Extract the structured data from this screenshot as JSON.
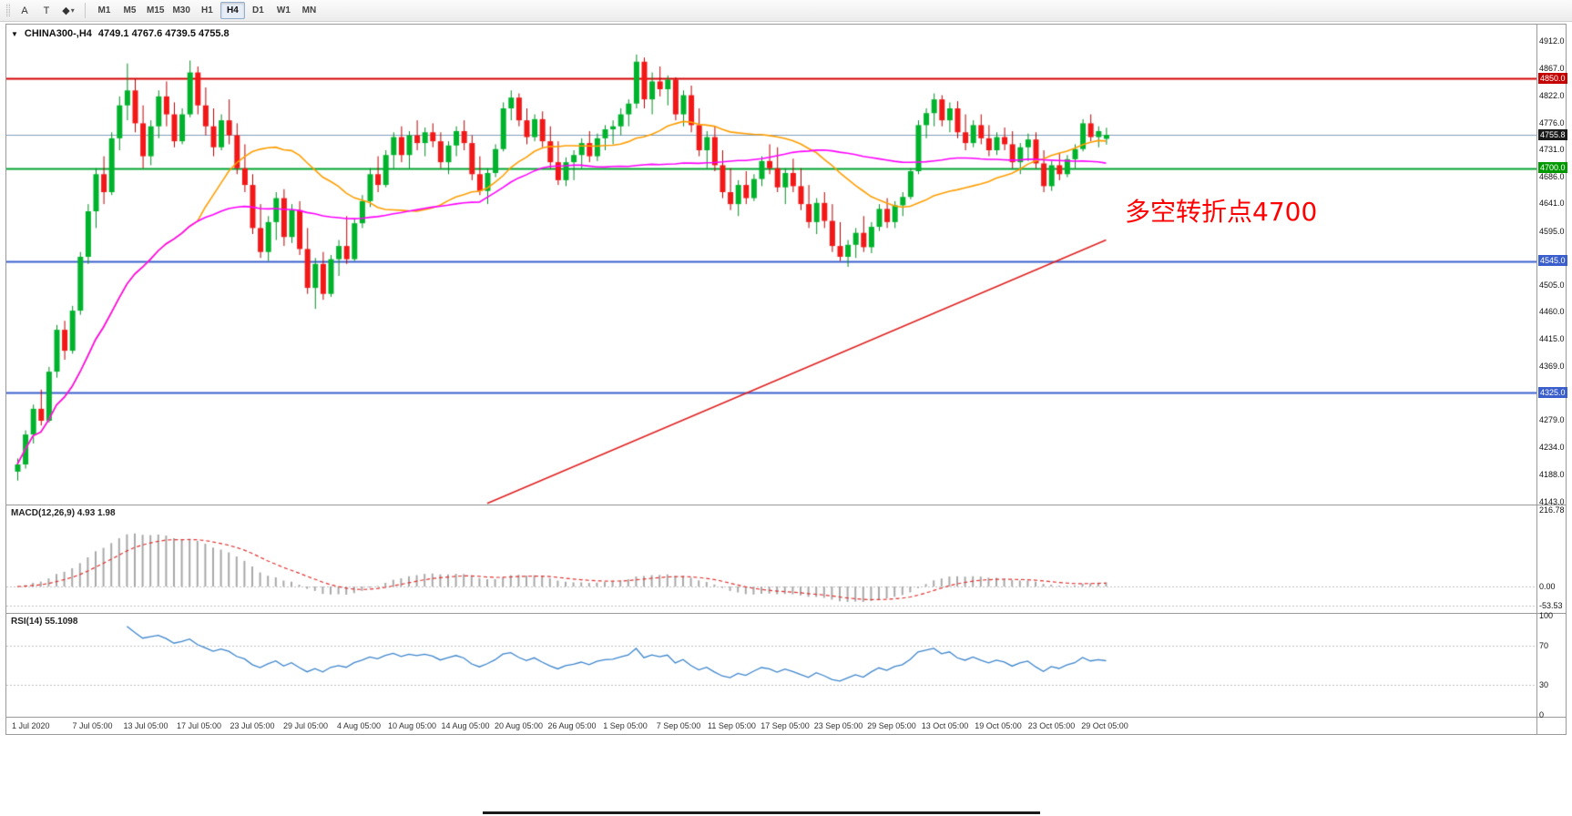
{
  "toolbar": {
    "tools": [
      {
        "id": "annotation-a",
        "glyph": "A"
      },
      {
        "id": "text",
        "glyph": "T"
      },
      {
        "id": "shapes",
        "glyph": "◆",
        "arrow": "▾"
      }
    ],
    "timeframes": [
      {
        "label": "M1",
        "active": false
      },
      {
        "label": "M5",
        "active": false
      },
      {
        "label": "M15",
        "active": false
      },
      {
        "label": "M30",
        "active": false
      },
      {
        "label": "H1",
        "active": false
      },
      {
        "label": "H4",
        "active": true
      },
      {
        "label": "D1",
        "active": false
      },
      {
        "label": "W1",
        "active": false
      },
      {
        "label": "MN",
        "active": false
      }
    ]
  },
  "header": {
    "marker": "▼",
    "title": "CHINA300-,H4",
    "ohlc": "4749.1 4767.6 4739.5 4755.8"
  },
  "annotation": {
    "text": "多空转折点4700",
    "color": "#ff0000"
  },
  "macd": {
    "label": "MACD(12,26,9) 4.93 1.98",
    "fast": 12,
    "slow": 26,
    "signal": 9,
    "main_value": 4.93,
    "signal_value": 1.98,
    "range": [
      -75,
      230
    ],
    "axis_labels": [
      {
        "text": "216.78",
        "value": 216.78
      },
      {
        "text": "0.00",
        "value": 0
      },
      {
        "text": "-53.53",
        "value": -53.53
      }
    ],
    "level_lines": [
      0,
      -53.53
    ],
    "histogram_color": "#a8a8a8",
    "signal_color": "#e03030"
  },
  "rsi": {
    "label": "RSI(14) 55.1098",
    "period": 14,
    "value": 55.1098,
    "range": [
      0,
      100
    ],
    "axis_labels": [
      {
        "text": "100",
        "value": 100
      },
      {
        "text": "70",
        "value": 70
      },
      {
        "text": "30",
        "value": 30
      },
      {
        "text": "0",
        "value": 0
      }
    ],
    "level_lines": [
      70,
      30
    ],
    "line_color": "#3d85cc"
  },
  "chart_data": {
    "type": "candlestick",
    "title": "CHINA300-,H4",
    "symbol": "CHINA300-",
    "timeframe": "H4",
    "current_ohlc": {
      "open": 4749.1,
      "high": 4767.6,
      "low": 4739.5,
      "close": 4755.8
    },
    "up_color": "#00b32c",
    "down_color": "#f21818",
    "y_axis": {
      "range": [
        4138,
        4940
      ],
      "ticks": [
        {
          "text": "4912.0",
          "value": 4912
        },
        {
          "text": "4867.0",
          "value": 4867
        },
        {
          "text": "4822.0",
          "value": 4822
        },
        {
          "text": "4776.0",
          "value": 4776
        },
        {
          "text": "4731.0",
          "value": 4731
        },
        {
          "text": "4686.0",
          "value": 4686
        },
        {
          "text": "4641.0",
          "value": 4641
        },
        {
          "text": "4595.0",
          "value": 4595
        },
        {
          "text": "4505.0",
          "value": 4505
        },
        {
          "text": "4460.0",
          "value": 4460
        },
        {
          "text": "4415.0",
          "value": 4415
        },
        {
          "text": "4369.0",
          "value": 4369
        },
        {
          "text": "4279.0",
          "value": 4279
        },
        {
          "text": "4234.0",
          "value": 4234
        },
        {
          "text": "4188.0",
          "value": 4188
        },
        {
          "text": "4143.0",
          "value": 4143
        }
      ]
    },
    "badges": [
      {
        "text": "4850.0",
        "price": 4850,
        "bg": "#c40000"
      },
      {
        "text": "4755.8",
        "price": 4755.8,
        "bg": "#1a1a1a"
      },
      {
        "text": "4700.0",
        "price": 4700,
        "bg": "#009a00"
      },
      {
        "text": "4545.0",
        "price": 4545,
        "bg": "#3a5fcd"
      },
      {
        "text": "4325.0",
        "price": 4325,
        "bg": "#3a5fcd"
      }
    ],
    "hlines": [
      {
        "price": 4850,
        "color": "#d40000",
        "width": 2
      },
      {
        "price": 4755.8,
        "color": "#7f9db9",
        "width": 1
      },
      {
        "price": 4700,
        "color": "#00a32f",
        "width": 2
      },
      {
        "price": 4545,
        "color": "#3a5fcd",
        "width": 2
      },
      {
        "price": 4325,
        "color": "#3a5fcd",
        "width": 2
      }
    ],
    "trendline": {
      "from_index": 60,
      "from_price": 4140,
      "to_index": 139,
      "to_price": 4580,
      "color": "#e02020"
    },
    "moving_averages": [
      {
        "period": 24,
        "color": "#ff9d00"
      },
      {
        "period": 60,
        "color": "#ff00ff"
      }
    ],
    "x_labels": [
      "1 Jul 2020",
      "7 Jul 05:00",
      "13 Jul 05:00",
      "17 Jul 05:00",
      "23 Jul 05:00",
      "29 Jul 05:00",
      "4 Aug 05:00",
      "10 Aug 05:00",
      "14 Aug 05:00",
      "20 Aug 05:00",
      "26 Aug 05:00",
      "1 Sep 05:00",
      "7 Sep 05:00",
      "11 Sep 05:00",
      "17 Sep 05:00",
      "23 Sep 05:00",
      "29 Sep 05:00",
      "13 Oct 05:00",
      "19 Oct 05:00",
      "23 Oct 05:00",
      "29 Oct 05:00"
    ],
    "candles": [
      [
        4193,
        4215,
        4178,
        4205
      ],
      [
        4205,
        4262,
        4198,
        4255
      ],
      [
        4255,
        4305,
        4240,
        4298
      ],
      [
        4298,
        4330,
        4270,
        4278
      ],
      [
        4278,
        4368,
        4275,
        4360
      ],
      [
        4360,
        4438,
        4350,
        4430
      ],
      [
        4430,
        4445,
        4380,
        4395
      ],
      [
        4395,
        4470,
        4390,
        4462
      ],
      [
        4462,
        4560,
        4455,
        4552
      ],
      [
        4552,
        4640,
        4540,
        4628
      ],
      [
        4628,
        4700,
        4600,
        4690
      ],
      [
        4690,
        4720,
        4640,
        4660
      ],
      [
        4660,
        4760,
        4655,
        4750
      ],
      [
        4750,
        4820,
        4730,
        4805
      ],
      [
        4805,
        4875,
        4780,
        4830
      ],
      [
        4830,
        4850,
        4760,
        4775
      ],
      [
        4775,
        4805,
        4700,
        4720
      ],
      [
        4720,
        4780,
        4705,
        4770
      ],
      [
        4770,
        4830,
        4750,
        4820
      ],
      [
        4820,
        4845,
        4770,
        4790
      ],
      [
        4790,
        4810,
        4735,
        4745
      ],
      [
        4745,
        4800,
        4740,
        4790
      ],
      [
        4790,
        4880,
        4785,
        4860
      ],
      [
        4860,
        4870,
        4790,
        4805
      ],
      [
        4805,
        4835,
        4755,
        4770
      ],
      [
        4770,
        4800,
        4720,
        4735
      ],
      [
        4735,
        4790,
        4730,
        4780
      ],
      [
        4780,
        4815,
        4740,
        4755
      ],
      [
        4755,
        4775,
        4690,
        4700
      ],
      [
        4700,
        4740,
        4660,
        4672
      ],
      [
        4672,
        4690,
        4590,
        4600
      ],
      [
        4600,
        4640,
        4550,
        4560
      ],
      [
        4560,
        4620,
        4545,
        4610
      ],
      [
        4610,
        4660,
        4580,
        4650
      ],
      [
        4650,
        4665,
        4570,
        4585
      ],
      [
        4585,
        4640,
        4575,
        4630
      ],
      [
        4630,
        4645,
        4555,
        4565
      ],
      [
        4565,
        4600,
        4490,
        4500
      ],
      [
        4500,
        4550,
        4465,
        4540
      ],
      [
        4540,
        4560,
        4480,
        4490
      ],
      [
        4490,
        4555,
        4485,
        4548
      ],
      [
        4548,
        4580,
        4520,
        4570
      ],
      [
        4570,
        4620,
        4540,
        4548
      ],
      [
        4548,
        4615,
        4545,
        4608
      ],
      [
        4608,
        4655,
        4600,
        4645
      ],
      [
        4645,
        4700,
        4635,
        4690
      ],
      [
        4690,
        4720,
        4660,
        4672
      ],
      [
        4672,
        4730,
        4668,
        4722
      ],
      [
        4722,
        4760,
        4700,
        4752
      ],
      [
        4752,
        4770,
        4710,
        4722
      ],
      [
        4722,
        4762,
        4700,
        4755
      ],
      [
        4755,
        4780,
        4730,
        4742
      ],
      [
        4742,
        4768,
        4720,
        4760
      ],
      [
        4760,
        4775,
        4735,
        4745
      ],
      [
        4745,
        4760,
        4700,
        4710
      ],
      [
        4710,
        4745,
        4690,
        4738
      ],
      [
        4738,
        4770,
        4720,
        4762
      ],
      [
        4762,
        4780,
        4730,
        4742
      ],
      [
        4742,
        4755,
        4680,
        4690
      ],
      [
        4690,
        4720,
        4655,
        4662
      ],
      [
        4662,
        4700,
        4640,
        4692
      ],
      [
        4692,
        4740,
        4685,
        4732
      ],
      [
        4732,
        4810,
        4728,
        4800
      ],
      [
        4800,
        4830,
        4780,
        4818
      ],
      [
        4818,
        4825,
        4770,
        4780
      ],
      [
        4780,
        4800,
        4740,
        4752
      ],
      [
        4752,
        4790,
        4745,
        4782
      ],
      [
        4782,
        4795,
        4735,
        4745
      ],
      [
        4745,
        4770,
        4700,
        4710
      ],
      [
        4710,
        4745,
        4672,
        4680
      ],
      [
        4680,
        4718,
        4670,
        4710
      ],
      [
        4710,
        4730,
        4680,
        4722
      ],
      [
        4722,
        4750,
        4700,
        4742
      ],
      [
        4742,
        4762,
        4710,
        4720
      ],
      [
        4720,
        4758,
        4712,
        4750
      ],
      [
        4750,
        4772,
        4730,
        4765
      ],
      [
        4765,
        4780,
        4740,
        4770
      ],
      [
        4770,
        4800,
        4755,
        4790
      ],
      [
        4790,
        4815,
        4770,
        4808
      ],
      [
        4808,
        4890,
        4800,
        4878
      ],
      [
        4878,
        4885,
        4800,
        4815
      ],
      [
        4815,
        4860,
        4790,
        4845
      ],
      [
        4845,
        4870,
        4820,
        4832
      ],
      [
        4832,
        4855,
        4805,
        4848
      ],
      [
        4848,
        4852,
        4780,
        4790
      ],
      [
        4790,
        4830,
        4770,
        4822
      ],
      [
        4822,
        4838,
        4760,
        4772
      ],
      [
        4772,
        4800,
        4720,
        4730
      ],
      [
        4730,
        4762,
        4700,
        4752
      ],
      [
        4752,
        4770,
        4695,
        4705
      ],
      [
        4705,
        4730,
        4650,
        4660
      ],
      [
        4660,
        4700,
        4630,
        4640
      ],
      [
        4640,
        4680,
        4620,
        4672
      ],
      [
        4672,
        4695,
        4640,
        4650
      ],
      [
        4650,
        4690,
        4645,
        4682
      ],
      [
        4682,
        4720,
        4670,
        4712
      ],
      [
        4712,
        4740,
        4690,
        4700
      ],
      [
        4700,
        4735,
        4660,
        4668
      ],
      [
        4668,
        4700,
        4640,
        4692
      ],
      [
        4692,
        4716,
        4660,
        4670
      ],
      [
        4670,
        4700,
        4630,
        4640
      ],
      [
        4640,
        4672,
        4600,
        4610
      ],
      [
        4610,
        4650,
        4590,
        4642
      ],
      [
        4642,
        4660,
        4600,
        4612
      ],
      [
        4612,
        4640,
        4560,
        4570
      ],
      [
        4570,
        4610,
        4545,
        4552
      ],
      [
        4552,
        4580,
        4535,
        4572
      ],
      [
        4572,
        4600,
        4550,
        4592
      ],
      [
        4592,
        4620,
        4560,
        4568
      ],
      [
        4568,
        4610,
        4558,
        4602
      ],
      [
        4602,
        4640,
        4595,
        4632
      ],
      [
        4632,
        4650,
        4600,
        4610
      ],
      [
        4610,
        4645,
        4600,
        4638
      ],
      [
        4638,
        4660,
        4620,
        4652
      ],
      [
        4652,
        4700,
        4648,
        4695
      ],
      [
        4695,
        4780,
        4690,
        4772
      ],
      [
        4772,
        4800,
        4750,
        4792
      ],
      [
        4792,
        4825,
        4770,
        4815
      ],
      [
        4815,
        4822,
        4770,
        4780
      ],
      [
        4780,
        4810,
        4760,
        4800
      ],
      [
        4800,
        4812,
        4750,
        4760
      ],
      [
        4760,
        4790,
        4730,
        4742
      ],
      [
        4742,
        4780,
        4735,
        4772
      ],
      [
        4772,
        4790,
        4740,
        4750
      ],
      [
        4750,
        4772,
        4720,
        4730
      ],
      [
        4730,
        4760,
        4722,
        4752
      ],
      [
        4752,
        4768,
        4730,
        4740
      ],
      [
        4740,
        4762,
        4700,
        4710
      ],
      [
        4710,
        4742,
        4690,
        4735
      ],
      [
        4735,
        4758,
        4712,
        4748
      ],
      [
        4748,
        4760,
        4700,
        4708
      ],
      [
        4708,
        4730,
        4660,
        4670
      ],
      [
        4670,
        4712,
        4662,
        4705
      ],
      [
        4705,
        4726,
        4680,
        4690
      ],
      [
        4690,
        4722,
        4685,
        4715
      ],
      [
        4715,
        4740,
        4700,
        4732
      ],
      [
        4732,
        4782,
        4728,
        4775
      ],
      [
        4775,
        4790,
        4745,
        4752
      ],
      [
        4752,
        4770,
        4735,
        4762
      ],
      [
        4749.1,
        4767.6,
        4739.5,
        4755.8
      ]
    ]
  }
}
